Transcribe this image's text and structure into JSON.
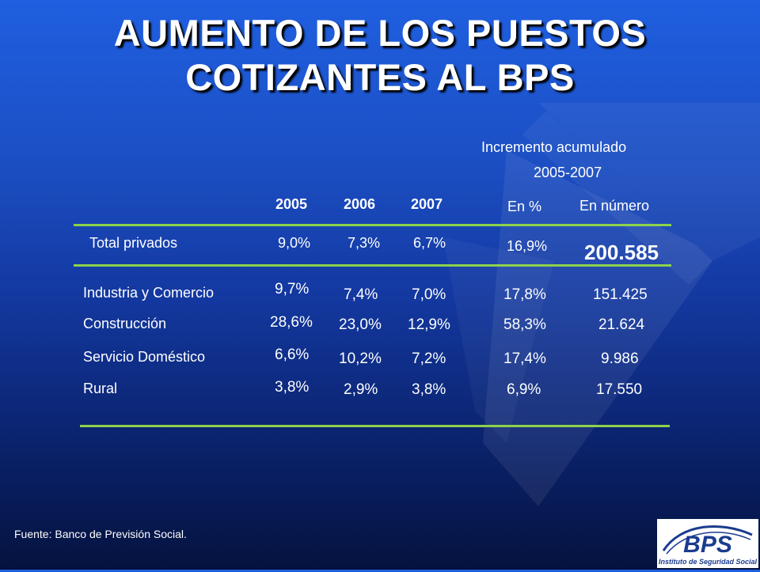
{
  "title": {
    "line1": "AUMENTO DE LOS PUESTOS",
    "line2": "COTIZANTES AL BPS"
  },
  "table": {
    "group_header": {
      "line1": "Incremento acumulado",
      "line2": "2005-2007"
    },
    "years": [
      "2005",
      "2006",
      "2007"
    ],
    "sub_headers": [
      "En %",
      "En número"
    ],
    "total": {
      "label": "Total privados",
      "v2005": "9,0%",
      "v2006": "7,3%",
      "v2007": "6,7%",
      "pct": "16,9%",
      "number": "200.585"
    },
    "rows": [
      {
        "label": "Industria y Comercio",
        "v2005": "9,7%",
        "v2006": "7,4%",
        "v2007": "7,0%",
        "pct": "17,8%",
        "number": "151.425"
      },
      {
        "label": "Construcción",
        "v2005": "28,6%",
        "v2006": "23,0%",
        "v2007": "12,9%",
        "pct": "58,3%",
        "number": "21.624"
      },
      {
        "label": "Servicio Doméstico",
        "v2005": "6,6%",
        "v2006": "10,2%",
        "v2007": "7,2%",
        "pct": "17,4%",
        "number": "9.986"
      },
      {
        "label": "Rural",
        "v2005": "3,8%",
        "v2006": "2,9%",
        "v2007": "3,8%",
        "pct": "6,9%",
        "number": "17.550"
      }
    ]
  },
  "footer": {
    "source": "Fuente: Banco de Previsión Social."
  },
  "logo": {
    "text": "BPS",
    "subtitle": "Instituto de Seguridad Social"
  },
  "colors": {
    "rule": "#8cd24a",
    "logo_blue": "#1a3b8f",
    "background_top": "#1f5fe0",
    "background_bottom": "#04123e"
  }
}
